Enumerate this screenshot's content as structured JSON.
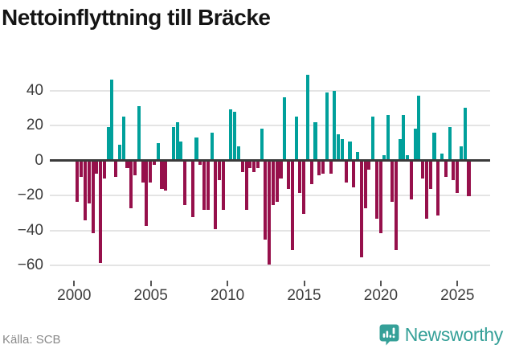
{
  "title": "Nettoinflyttning till Bräcke",
  "footer": {
    "source": "Källa: SCB",
    "brand": "Newsworthy"
  },
  "chart_data": {
    "type": "bar",
    "title": "Nettoinflyttning till Bräcke",
    "frequency": "quarterly",
    "start_year": 2000,
    "start_quarter": 1,
    "values": [
      -23,
      -9,
      -34,
      -24,
      -41,
      -7,
      -58,
      -10,
      19,
      46,
      -9,
      9,
      25,
      -4,
      -27,
      -8,
      31,
      -12,
      -37,
      -12,
      -2,
      10,
      -16,
      -17,
      0,
      19,
      22,
      11,
      -25,
      0,
      -32,
      13,
      -2,
      -28,
      -28,
      16,
      -39,
      -11,
      -28,
      0,
      29,
      28,
      8,
      -6,
      -28,
      -4,
      -6,
      -4,
      18,
      -45,
      -59,
      -25,
      -23,
      -10,
      36,
      -16,
      -51,
      25,
      -18,
      -30,
      49,
      -13,
      22,
      -8,
      -7,
      39,
      -7,
      40,
      15,
      12,
      -12,
      11,
      -15,
      5,
      -55,
      -27,
      -5,
      25,
      -33,
      -41,
      3,
      26,
      -23,
      -51,
      12,
      26,
      3,
      -22,
      18,
      37,
      -10,
      -33,
      -16,
      16,
      -31,
      4,
      -9,
      19,
      -11,
      -18,
      8,
      30,
      -20
    ],
    "x_axis": {
      "tick_years": [
        2000,
        2005,
        2010,
        2015,
        2020,
        2025
      ]
    },
    "y_axis": {
      "ticks": [
        40,
        20,
        0,
        -20,
        -40,
        -60
      ],
      "labels": [
        "40",
        "20",
        "0",
        "−20",
        "−40",
        "−60"
      ]
    },
    "ylim": [
      -65,
      52
    ],
    "grid": true,
    "legend": false,
    "colors": {
      "positive": "#00A09B",
      "negative": "#96104B",
      "zero_line": "#3A3A3A",
      "gridline": "#E4E4E4",
      "brand_teal": "#35A098"
    }
  }
}
